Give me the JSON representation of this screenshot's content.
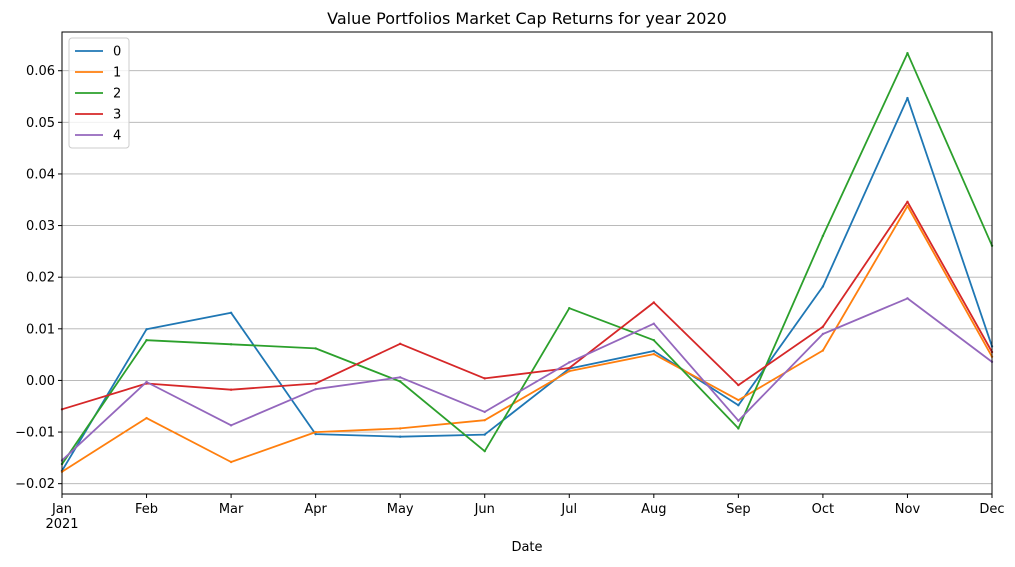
{
  "chart_data": {
    "type": "line",
    "title": "Value Portfolios Market Cap Returns for year 2020",
    "xlabel": "Date",
    "ylabel": "",
    "x": [
      "Jan",
      "Feb",
      "Mar",
      "Apr",
      "May",
      "Jun",
      "Jul",
      "Aug",
      "Sep",
      "Oct",
      "Nov",
      "Dec"
    ],
    "x_sublabel": "2021",
    "ylim": [
      -0.022,
      0.0675
    ],
    "yticks": [
      -0.02,
      -0.01,
      0.0,
      0.01,
      0.02,
      0.03,
      0.04,
      0.05,
      0.06
    ],
    "ytick_labels": [
      "−0.02",
      "−0.01",
      "0.00",
      "0.01",
      "0.02",
      "0.03",
      "0.04",
      "0.05",
      "0.06"
    ],
    "grid": "horizontal",
    "legend_position": "top-left",
    "series": [
      {
        "name": "0",
        "color": "#1f77b4",
        "values": [
          -0.0175,
          0.0099,
          0.0131,
          -0.0104,
          -0.0109,
          -0.0105,
          0.0023,
          0.0057,
          -0.0048,
          0.0182,
          0.0547,
          0.0066
        ]
      },
      {
        "name": "1",
        "color": "#ff7f0e",
        "values": [
          -0.0177,
          -0.0073,
          -0.0158,
          -0.01,
          -0.0093,
          -0.0077,
          0.0018,
          0.0051,
          -0.0038,
          0.0058,
          0.0338,
          0.0046
        ]
      },
      {
        "name": "2",
        "color": "#2ca02c",
        "values": [
          -0.0162,
          0.0078,
          0.007,
          0.0062,
          -0.0002,
          -0.0137,
          0.014,
          0.0078,
          -0.0093,
          0.028,
          0.0634,
          0.0261
        ]
      },
      {
        "name": "3",
        "color": "#d62728",
        "values": [
          -0.0056,
          -0.0006,
          -0.0018,
          -0.0006,
          0.0071,
          0.0004,
          0.0024,
          0.0151,
          -0.0009,
          0.0104,
          0.0346,
          0.0055
        ]
      },
      {
        "name": "4",
        "color": "#9467bd",
        "values": [
          -0.0155,
          -0.0003,
          -0.0087,
          -0.0017,
          0.0006,
          -0.0061,
          0.0035,
          0.011,
          -0.0078,
          0.009,
          0.0159,
          0.0036
        ]
      }
    ]
  }
}
